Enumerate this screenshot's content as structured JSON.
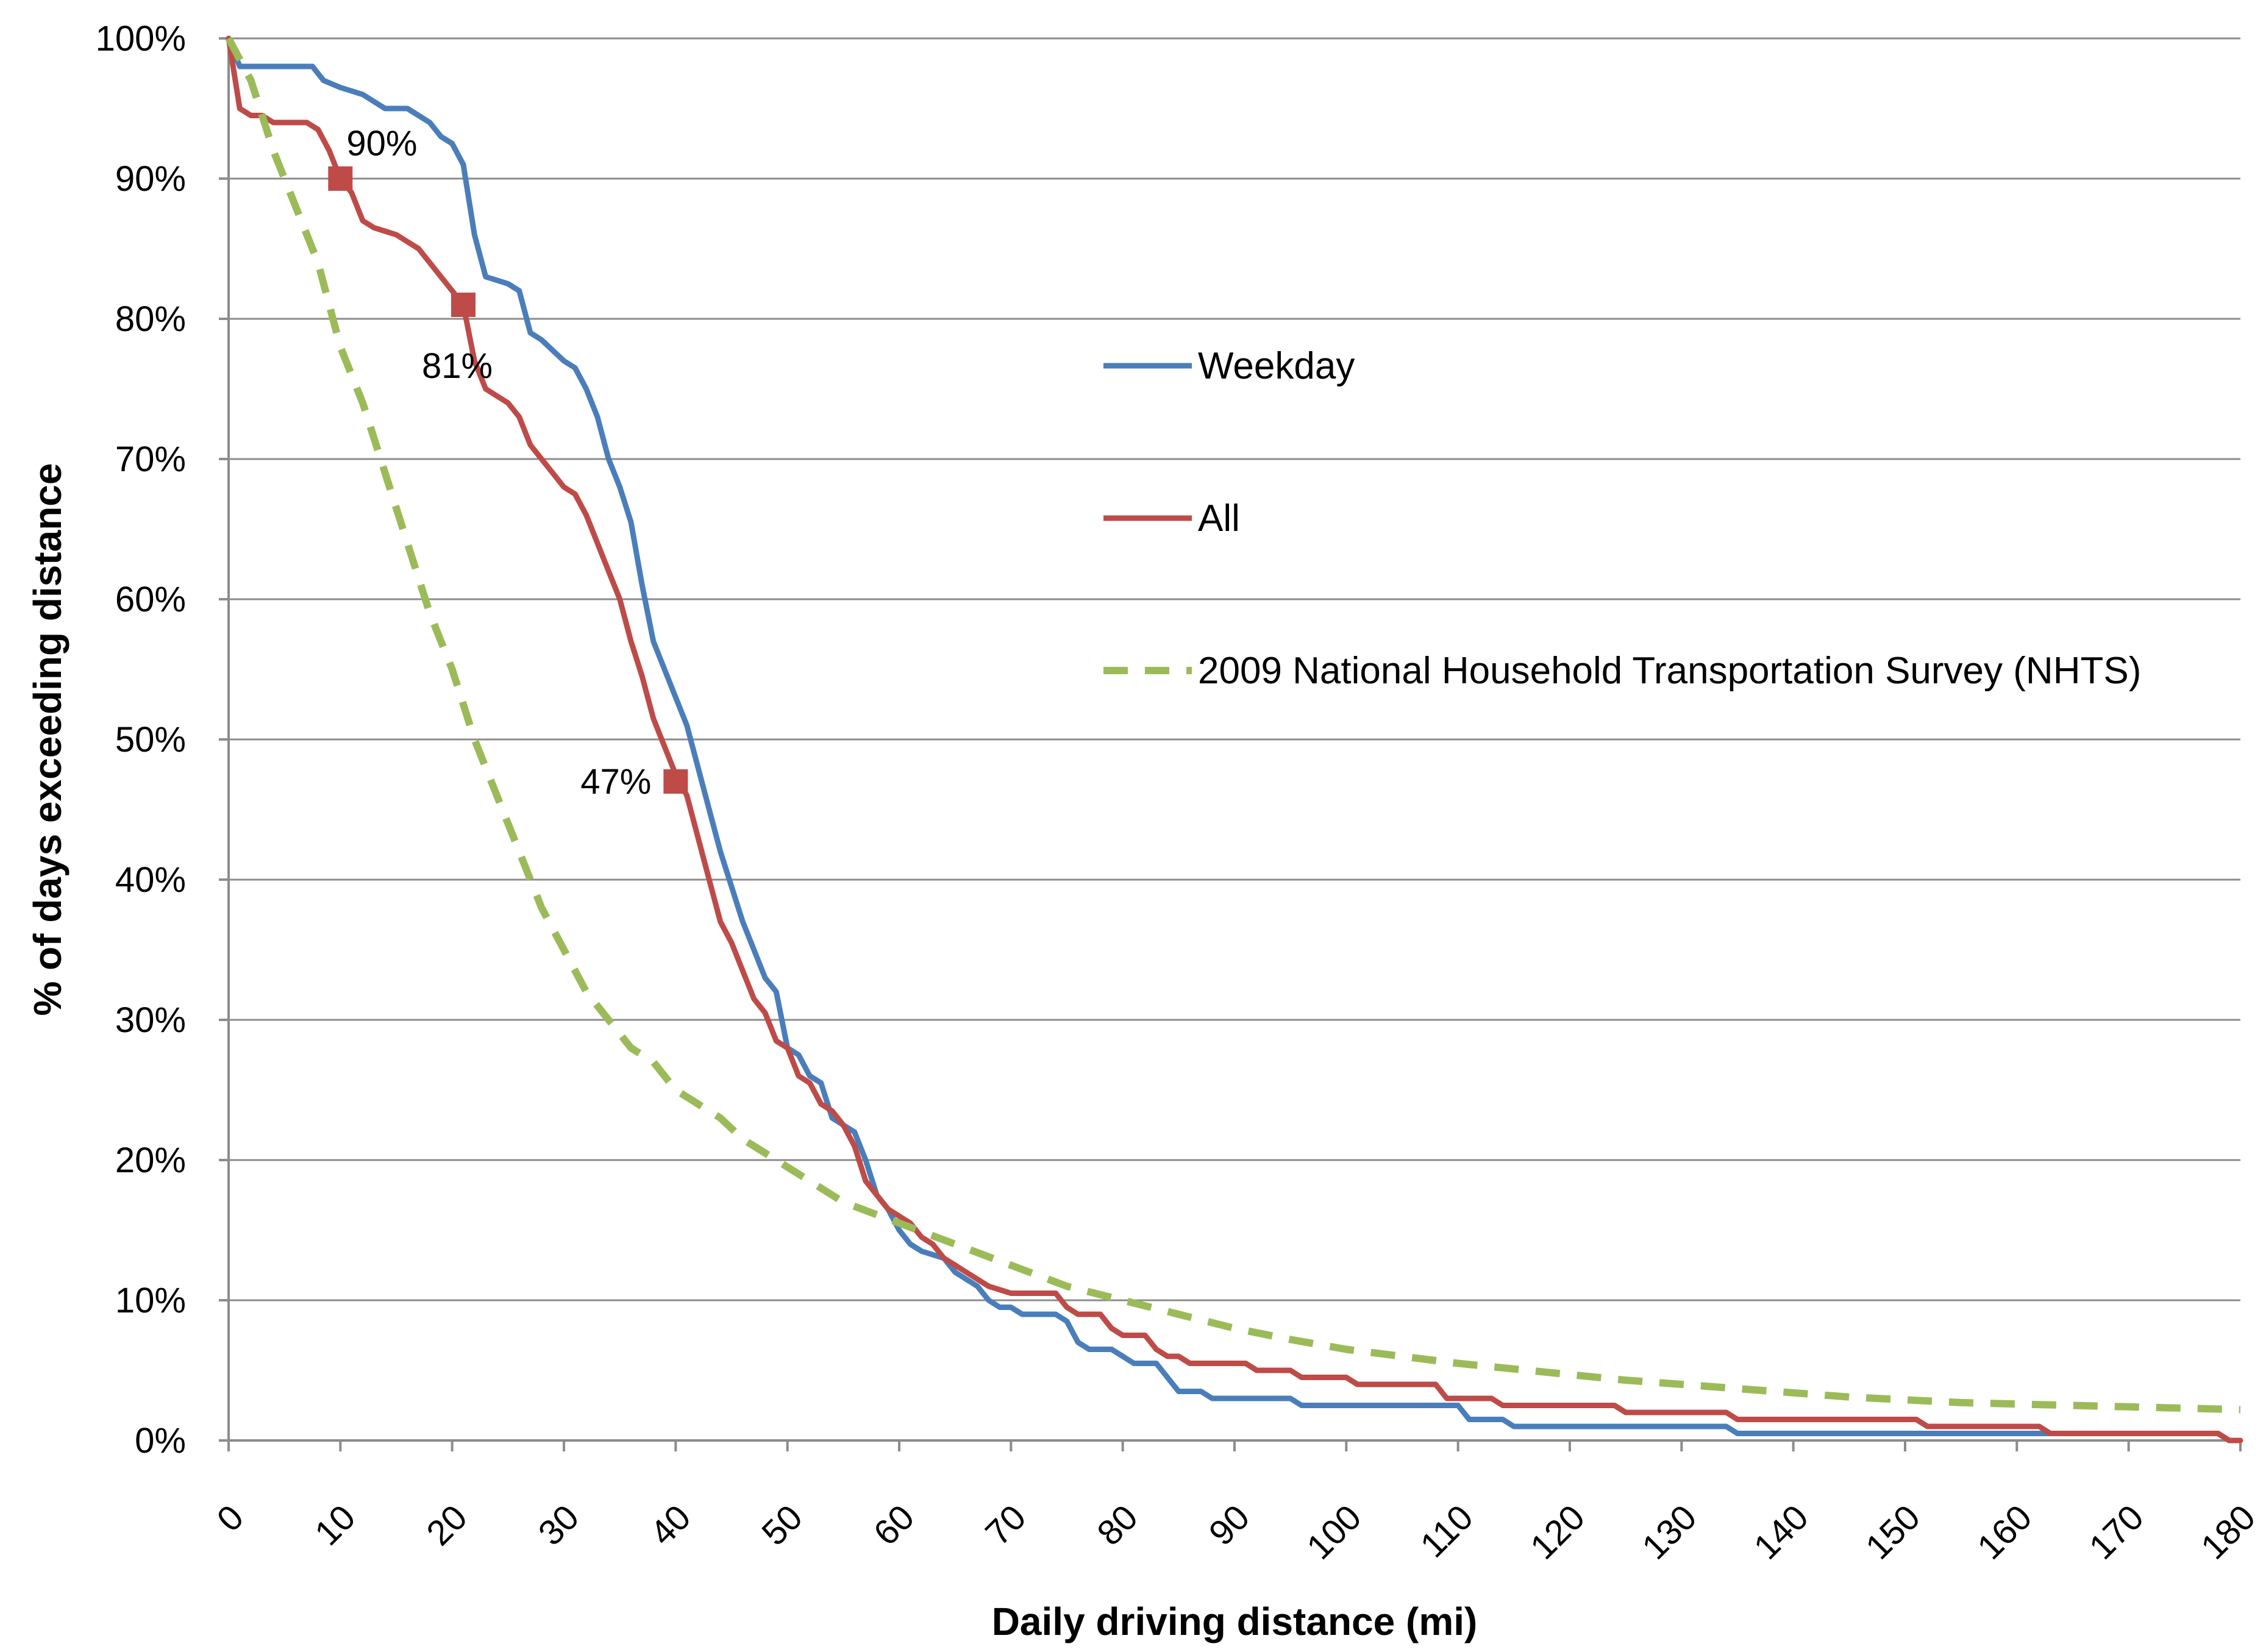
{
  "chart_data": {
    "type": "line",
    "title": "",
    "xlabel": "Daily driving distance (mi)",
    "ylabel": "% of days exceeding distance",
    "xlim": [
      0,
      180
    ],
    "ylim": [
      0,
      100
    ],
    "x_ticks": [
      0,
      10,
      20,
      30,
      40,
      50,
      60,
      70,
      80,
      90,
      100,
      110,
      120,
      130,
      140,
      150,
      160,
      170,
      180
    ],
    "y_ticks": [
      0,
      10,
      20,
      30,
      40,
      50,
      60,
      70,
      80,
      90,
      100
    ],
    "y_tick_labels": [
      "0%",
      "10%",
      "20%",
      "30%",
      "40%",
      "50%",
      "60%",
      "70%",
      "80%",
      "90%",
      "100%"
    ],
    "x_tick_labels": [
      "0",
      "10",
      "20",
      "30",
      "40",
      "50",
      "60",
      "70",
      "80",
      "90",
      "100",
      "110",
      "120",
      "130",
      "140",
      "150",
      "160",
      "170",
      "180"
    ],
    "grid": true,
    "legend_position": "right",
    "series": [
      {
        "name": "Weekday",
        "color": "#4a7ebb",
        "style": "solid",
        "points": [
          [
            0,
            100
          ],
          [
            0.5,
            99
          ],
          [
            1,
            98
          ],
          [
            4,
            98
          ],
          [
            7.5,
            98
          ],
          [
            8.5,
            97
          ],
          [
            10,
            96.5
          ],
          [
            12,
            96
          ],
          [
            13,
            95.5
          ],
          [
            14,
            95
          ],
          [
            16,
            95
          ],
          [
            17,
            94.5
          ],
          [
            18,
            94
          ],
          [
            19,
            93
          ],
          [
            20,
            92.5
          ],
          [
            21,
            91
          ],
          [
            22,
            86
          ],
          [
            23,
            83
          ],
          [
            25,
            82.5
          ],
          [
            26,
            82
          ],
          [
            27,
            79
          ],
          [
            28,
            78.5
          ],
          [
            30,
            77
          ],
          [
            31,
            76.5
          ],
          [
            32,
            75
          ],
          [
            33,
            73
          ],
          [
            34,
            70
          ],
          [
            35,
            68
          ],
          [
            36,
            65.5
          ],
          [
            37,
            61
          ],
          [
            38,
            57
          ],
          [
            39,
            55
          ],
          [
            40,
            53
          ],
          [
            41,
            51
          ],
          [
            42,
            48
          ],
          [
            43,
            45
          ],
          [
            44,
            42
          ],
          [
            45,
            39.5
          ],
          [
            46,
            37
          ],
          [
            47,
            35
          ],
          [
            48,
            33
          ],
          [
            49,
            32
          ],
          [
            50,
            28
          ],
          [
            51,
            27.5
          ],
          [
            52,
            26
          ],
          [
            53,
            25.5
          ],
          [
            54,
            23
          ],
          [
            55,
            22.5
          ],
          [
            56,
            22
          ],
          [
            57,
            20
          ],
          [
            58,
            17.5
          ],
          [
            59,
            16.5
          ],
          [
            60,
            15
          ],
          [
            61,
            14
          ],
          [
            62,
            13.5
          ],
          [
            64,
            13
          ],
          [
            65,
            12
          ],
          [
            66,
            11.5
          ],
          [
            67,
            11
          ],
          [
            68,
            10
          ],
          [
            69,
            9.5
          ],
          [
            70,
            9.5
          ],
          [
            71,
            9
          ],
          [
            74,
            9
          ],
          [
            75,
            8.5
          ],
          [
            76,
            7
          ],
          [
            77,
            6.5
          ],
          [
            79,
            6.5
          ],
          [
            80,
            6
          ],
          [
            81,
            5.5
          ],
          [
            83,
            5.5
          ],
          [
            84,
            4.5
          ],
          [
            85,
            3.5
          ],
          [
            87,
            3.5
          ],
          [
            88,
            3
          ],
          [
            95,
            3
          ],
          [
            96,
            2.5
          ],
          [
            110,
            2.5
          ],
          [
            111,
            1.5
          ],
          [
            114,
            1.5
          ],
          [
            115,
            1
          ],
          [
            134,
            1
          ],
          [
            135,
            0.5
          ],
          [
            178,
            0.5
          ],
          [
            179,
            0
          ]
        ]
      },
      {
        "name": "All",
        "color": "#be4b48",
        "style": "solid",
        "points": [
          [
            0,
            100
          ],
          [
            1,
            95
          ],
          [
            2,
            94.5
          ],
          [
            3,
            94.5
          ],
          [
            4,
            94
          ],
          [
            7,
            94
          ],
          [
            8,
            93.5
          ],
          [
            9,
            92
          ],
          [
            10,
            90
          ],
          [
            11,
            89
          ],
          [
            12,
            87
          ],
          [
            13,
            86.5
          ],
          [
            15,
            86
          ],
          [
            16,
            85.5
          ],
          [
            17,
            85
          ],
          [
            18,
            84
          ],
          [
            19,
            83
          ],
          [
            20,
            82
          ],
          [
            21,
            81
          ],
          [
            22,
            77
          ],
          [
            23,
            75
          ],
          [
            24,
            74.5
          ],
          [
            25,
            74
          ],
          [
            26,
            73
          ],
          [
            27,
            71
          ],
          [
            28,
            70
          ],
          [
            29,
            69
          ],
          [
            30,
            68
          ],
          [
            31,
            67.5
          ],
          [
            32,
            66
          ],
          [
            33,
            64
          ],
          [
            34,
            62
          ],
          [
            35,
            60
          ],
          [
            36,
            57
          ],
          [
            37,
            54.5
          ],
          [
            38,
            51.5
          ],
          [
            39,
            49.5
          ],
          [
            40,
            47.5
          ],
          [
            41,
            46
          ],
          [
            42,
            43
          ],
          [
            43,
            40
          ],
          [
            44,
            37
          ],
          [
            45,
            35.5
          ],
          [
            46,
            33.5
          ],
          [
            47,
            31.5
          ],
          [
            48,
            30.5
          ],
          [
            49,
            28.5
          ],
          [
            50,
            28
          ],
          [
            51,
            26
          ],
          [
            52,
            25.5
          ],
          [
            53,
            24
          ],
          [
            54,
            23.5
          ],
          [
            55,
            22.5
          ],
          [
            56,
            21
          ],
          [
            57,
            18.5
          ],
          [
            58,
            17.5
          ],
          [
            59,
            16.5
          ],
          [
            60,
            16
          ],
          [
            61,
            15.5
          ],
          [
            62,
            14.5
          ],
          [
            63,
            14
          ],
          [
            64,
            13
          ],
          [
            65,
            12.5
          ],
          [
            66,
            12
          ],
          [
            67,
            11.5
          ],
          [
            68,
            11
          ],
          [
            70,
            10.5
          ],
          [
            74,
            10.5
          ],
          [
            75,
            9.5
          ],
          [
            76,
            9
          ],
          [
            78,
            9
          ],
          [
            79,
            8
          ],
          [
            80,
            7.5
          ],
          [
            82,
            7.5
          ],
          [
            83,
            6.5
          ],
          [
            84,
            6
          ],
          [
            85,
            6
          ],
          [
            86,
            5.5
          ],
          [
            91,
            5.5
          ],
          [
            92,
            5
          ],
          [
            95,
            5
          ],
          [
            96,
            4.5
          ],
          [
            100,
            4.5
          ],
          [
            101,
            4
          ],
          [
            108,
            4
          ],
          [
            109,
            3
          ],
          [
            113,
            3
          ],
          [
            114,
            2.5
          ],
          [
            124,
            2.5
          ],
          [
            125,
            2
          ],
          [
            134,
            2
          ],
          [
            135,
            1.5
          ],
          [
            151,
            1.5
          ],
          [
            152,
            1
          ],
          [
            162,
            1
          ],
          [
            163,
            0.5
          ],
          [
            178,
            0.5
          ],
          [
            179,
            0
          ],
          [
            180,
            0
          ]
        ]
      },
      {
        "name": "2009 National Household Transportation Survey (NHTS)",
        "color": "#9bbb59",
        "style": "dashed",
        "points": [
          [
            0,
            100
          ],
          [
            2,
            97
          ],
          [
            4,
            92
          ],
          [
            6,
            88
          ],
          [
            8,
            84
          ],
          [
            10,
            78
          ],
          [
            12,
            74
          ],
          [
            14,
            69
          ],
          [
            16,
            64
          ],
          [
            18,
            59
          ],
          [
            20,
            55
          ],
          [
            22,
            50
          ],
          [
            24,
            46
          ],
          [
            26,
            42
          ],
          [
            28,
            38
          ],
          [
            30,
            35
          ],
          [
            32,
            32
          ],
          [
            34,
            30
          ],
          [
            36,
            28
          ],
          [
            38,
            27
          ],
          [
            40,
            25
          ],
          [
            42,
            24
          ],
          [
            44,
            23
          ],
          [
            46,
            21.5
          ],
          [
            48,
            20.5
          ],
          [
            50,
            19.5
          ],
          [
            55,
            17
          ],
          [
            60,
            15.5
          ],
          [
            65,
            14
          ],
          [
            70,
            12.5
          ],
          [
            75,
            11
          ],
          [
            80,
            10
          ],
          [
            85,
            9
          ],
          [
            90,
            8
          ],
          [
            95,
            7.2
          ],
          [
            100,
            6.5
          ],
          [
            105,
            6
          ],
          [
            110,
            5.5
          ],
          [
            115,
            5.1
          ],
          [
            120,
            4.7
          ],
          [
            125,
            4.3
          ],
          [
            130,
            4
          ],
          [
            135,
            3.7
          ],
          [
            140,
            3.4
          ],
          [
            145,
            3.1
          ],
          [
            150,
            2.9
          ],
          [
            155,
            2.7
          ],
          [
            160,
            2.6
          ],
          [
            165,
            2.5
          ],
          [
            170,
            2.4
          ],
          [
            175,
            2.3
          ],
          [
            180,
            2.2
          ]
        ]
      }
    ],
    "annotations": [
      {
        "label": "90%",
        "x": 10,
        "y": 90
      },
      {
        "label": "81%",
        "x": 21,
        "y": 81
      },
      {
        "label": "47%",
        "x": 40,
        "y": 47
      }
    ]
  }
}
